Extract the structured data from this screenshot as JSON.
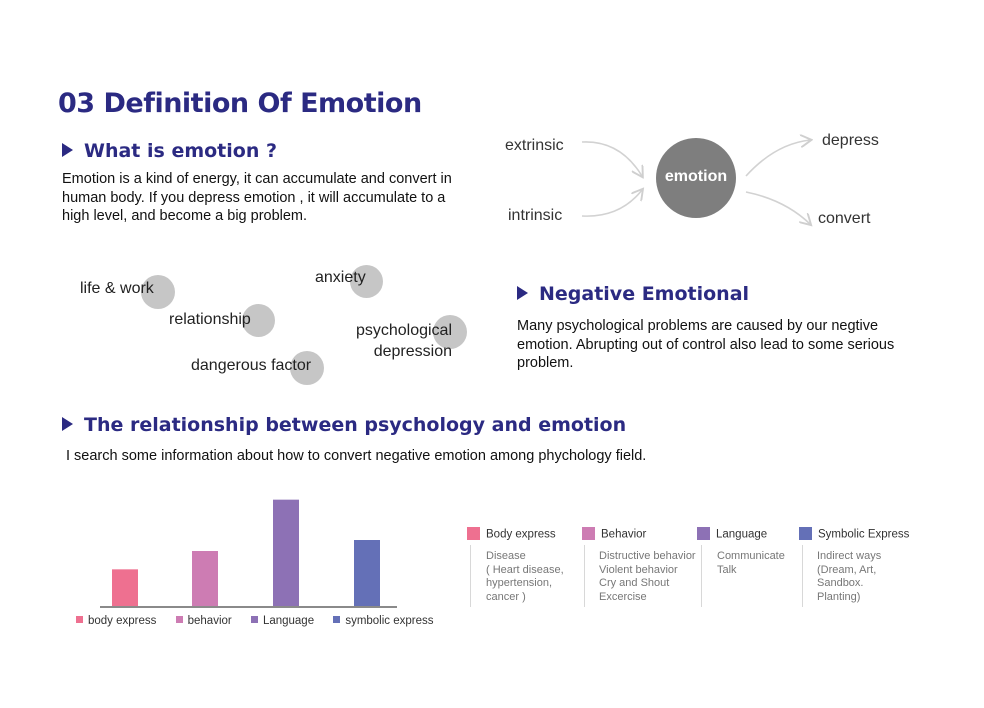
{
  "title": "03 Definition Of Emotion",
  "section1": {
    "heading": "What is emotion ?",
    "body": "Emotion is a kind of energy, it can accumulate and convert in human body. If you depress emotion , it will accumulate to a high level, and become a big problem."
  },
  "flow": {
    "center": "emotion",
    "inputs": [
      "extrinsic",
      "intrinsic"
    ],
    "outputs": [
      "depress",
      "convert"
    ]
  },
  "bubbles": [
    "life & work",
    "anxiety",
    "relationship",
    "psychological depression",
    "dangerous factor"
  ],
  "section2": {
    "heading": "Negative Emotional",
    "body": "Many psychological problems are caused by our negtive emotion. Abrupting out of control also lead to some serious problem."
  },
  "section3": {
    "heading": "The relationship between psychology and emotion",
    "body": "I search some information about how to convert negative emotion among phychology field."
  },
  "chart_data": {
    "type": "bar",
    "categories": [
      "body express",
      "behavior",
      "Language",
      "symbolic express"
    ],
    "values": [
      2,
      3,
      5.8,
      3.6
    ],
    "ylim": [
      0,
      6
    ],
    "colors": [
      "#ee7090",
      "#cd7cb3",
      "#8d71b5",
      "#6470b7"
    ],
    "legend_position": "bottom",
    "grid": false
  },
  "categories": [
    {
      "label": "Body express",
      "color": "#ee7090",
      "desc": "Disease\n( Heart disease,\nhypertension,\ncancer )"
    },
    {
      "label": "Behavior",
      "color": "#cd7cb3",
      "desc": "Distructive behavior\nViolent behavior\nCry and Shout\nExcercise"
    },
    {
      "label": "Language",
      "color": "#8d71b5",
      "desc": "Communicate\nTalk"
    },
    {
      "label": "Symbolic Express",
      "color": "#6470b7",
      "desc": "Indirect ways\n(Dream, Art,\nSandbox.\nPlanting)"
    }
  ]
}
